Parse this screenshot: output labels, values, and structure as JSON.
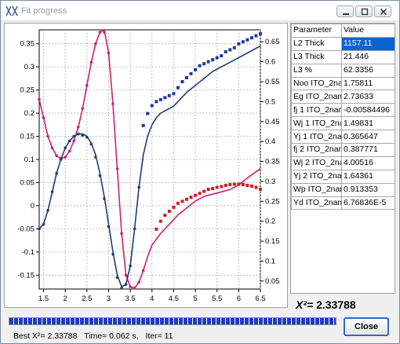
{
  "window": {
    "title": "Fit progress"
  },
  "table": {
    "headers": [
      "Parameter",
      "Value"
    ],
    "rows": [
      [
        "L2 Thick",
        "1157.11"
      ],
      [
        "L3 Thick",
        "21.446"
      ],
      [
        "L3 %",
        "62.3356"
      ],
      [
        "Noo ITO_2nam",
        "1.75811"
      ],
      [
        "Eg ITO_2nam",
        "2.73633"
      ],
      [
        "fj 1 ITO_2nam",
        "-0.00584496"
      ],
      [
        "Wj 1 ITO_2nam",
        "1.49831"
      ],
      [
        "Yj 1 ITO_2nam",
        "0.365647"
      ],
      [
        "fj 2 ITO_2nam",
        "0.387771"
      ],
      [
        "Wj 2 ITO_2nam",
        "4.00516"
      ],
      [
        "Yj 2 ITO_2nam",
        "1.64361"
      ],
      [
        "Wp ITO_2nam",
        "0.913353"
      ],
      [
        "Yd ITO_2nam",
        "6.76836E-5"
      ]
    ],
    "selected_row": 0
  },
  "chi2": {
    "label": "X²=",
    "value": "2.33788"
  },
  "status": {
    "best": "Best X²= 2.33788",
    "time": "Time= 0.062 s,",
    "iter": "Iter= 11"
  },
  "buttons": {
    "close": "Close"
  },
  "progress": {
    "fraction": 1.0
  },
  "chart_data": {
    "type": "line",
    "x_ticks": [
      "1.5",
      "2",
      "2.5",
      "3",
      "3.5",
      "4",
      "4.5",
      "5",
      "5.5",
      "6",
      "6.5"
    ],
    "y_left_ticks": [
      "0.35",
      "0.3",
      "0.25",
      "0.2",
      "0.15",
      "0.1",
      "0.05",
      "0",
      "-0.05",
      "-0.1",
      "-0.15"
    ],
    "y_right_ticks": [
      "0.65",
      "0.6",
      "0.55",
      "0.5",
      "0.45",
      "0.4",
      "0.35",
      "0.3",
      "0.25",
      "0.2",
      "0.15",
      "0.1",
      "0.05"
    ],
    "xlim": [
      1.4,
      6.5
    ],
    "ylim_left": [
      -0.18,
      0.38
    ],
    "ylim_right": [
      0.03,
      0.68
    ],
    "grid": true,
    "series": [
      {
        "color": "#cc2070",
        "axis": "left",
        "fit_x": [
          1.4,
          1.5,
          1.6,
          1.7,
          1.8,
          1.9,
          2.0,
          2.1,
          2.2,
          2.3,
          2.4,
          2.5,
          2.6,
          2.7,
          2.8,
          2.9,
          3.0,
          3.1,
          3.2,
          3.3,
          3.4,
          3.5,
          3.6,
          3.7,
          3.8,
          3.9,
          4.0,
          4.2,
          4.4,
          4.6,
          4.8,
          5.0,
          5.2,
          5.4,
          5.6,
          5.8,
          6.0,
          6.2,
          6.5
        ],
        "fit_y": [
          0.23,
          0.19,
          0.15,
          0.125,
          0.108,
          0.102,
          0.105,
          0.118,
          0.14,
          0.17,
          0.21,
          0.26,
          0.31,
          0.35,
          0.375,
          0.38,
          0.33,
          0.22,
          0.08,
          -0.06,
          -0.15,
          -0.175,
          -0.178,
          -0.165,
          -0.14,
          -0.11,
          -0.085,
          -0.06,
          -0.04,
          -0.02,
          -0.005,
          0.01,
          0.02,
          0.025,
          0.03,
          0.035,
          0.045,
          0.06,
          0.08
        ],
        "data_x": [
          1.4,
          1.5,
          1.6,
          1.7,
          1.8,
          1.9,
          2.0,
          2.1,
          2.2,
          2.3,
          2.4,
          2.5,
          2.6,
          2.7,
          2.8,
          2.9,
          3.0,
          3.1,
          3.2,
          3.3,
          3.4,
          3.5,
          3.6,
          3.7,
          3.8
        ],
        "data_y": [
          0.23,
          0.19,
          0.15,
          0.125,
          0.108,
          0.102,
          0.105,
          0.118,
          0.14,
          0.17,
          0.21,
          0.26,
          0.31,
          0.35,
          0.375,
          0.375,
          0.33,
          0.22,
          0.08,
          -0.06,
          -0.15,
          -0.175,
          -0.178,
          -0.165,
          -0.14
        ]
      },
      {
        "color": "#cc2020",
        "axis": "right",
        "data_x": [
          4.1,
          4.2,
          4.3,
          4.4,
          4.5,
          4.6,
          4.7,
          4.8,
          4.9,
          5.0,
          5.1,
          5.2,
          5.3,
          5.4,
          5.5,
          5.6,
          5.7,
          5.8,
          5.9,
          6.0,
          6.1,
          6.2,
          6.3,
          6.4,
          6.5
        ],
        "data_y": [
          0.18,
          0.2,
          0.215,
          0.225,
          0.235,
          0.245,
          0.25,
          0.255,
          0.26,
          0.265,
          0.27,
          0.275,
          0.28,
          0.282,
          0.285,
          0.287,
          0.29,
          0.292,
          0.293,
          0.293,
          0.292,
          0.29,
          0.288,
          0.285,
          0.28
        ]
      },
      {
        "color": "#1e3a78",
        "axis": "left",
        "fit_x": [
          1.4,
          1.5,
          1.6,
          1.7,
          1.8,
          1.9,
          2.0,
          2.1,
          2.2,
          2.3,
          2.4,
          2.5,
          2.6,
          2.7,
          2.8,
          2.9,
          3.0,
          3.1,
          3.2,
          3.3,
          3.4,
          3.5,
          3.6,
          3.7,
          3.8,
          3.9,
          4.0,
          4.1,
          4.2,
          4.3,
          4.4,
          4.5,
          4.6,
          4.8,
          5.0,
          5.2,
          5.4,
          5.6,
          5.8,
          6.0,
          6.2,
          6.5
        ],
        "fit_y": [
          -0.05,
          -0.04,
          -0.01,
          0.03,
          0.07,
          0.1,
          0.125,
          0.14,
          0.15,
          0.155,
          0.155,
          0.15,
          0.135,
          0.11,
          0.07,
          0.02,
          -0.04,
          -0.1,
          -0.15,
          -0.175,
          -0.17,
          -0.13,
          -0.05,
          0.04,
          0.11,
          0.15,
          0.175,
          0.19,
          0.2,
          0.205,
          0.21,
          0.215,
          0.225,
          0.245,
          0.26,
          0.275,
          0.29,
          0.3,
          0.31,
          0.32,
          0.33,
          0.345
        ],
        "data_x": [
          1.4,
          1.5,
          1.6,
          1.7,
          1.8,
          1.9,
          2.0,
          2.1,
          2.2,
          2.3,
          2.4,
          2.5,
          2.6,
          2.7,
          2.8,
          2.9,
          3.0,
          3.1,
          3.2,
          3.3,
          3.4,
          3.5,
          3.6,
          3.7
        ],
        "data_y": [
          -0.05,
          -0.04,
          -0.01,
          0.03,
          0.07,
          0.1,
          0.125,
          0.14,
          0.15,
          0.155,
          0.152,
          0.148,
          0.133,
          0.105,
          0.065,
          0.015,
          -0.045,
          -0.105,
          -0.155,
          -0.178,
          -0.17,
          -0.13,
          -0.05,
          0.04
        ]
      },
      {
        "color": "#1e3aa0",
        "axis": "right",
        "data_x": [
          3.8,
          3.9,
          4.0,
          4.1,
          4.2,
          4.3,
          4.4,
          4.5,
          4.6,
          4.7,
          4.8,
          4.9,
          5.0,
          5.1,
          5.2,
          5.3,
          5.4,
          5.5,
          5.6,
          5.7,
          5.8,
          5.9,
          6.0,
          6.1,
          6.2,
          6.3,
          6.4,
          6.5
        ],
        "data_y": [
          0.44,
          0.47,
          0.49,
          0.5,
          0.505,
          0.51,
          0.515,
          0.52,
          0.535,
          0.55,
          0.56,
          0.57,
          0.58,
          0.59,
          0.595,
          0.6,
          0.605,
          0.61,
          0.615,
          0.625,
          0.63,
          0.635,
          0.645,
          0.65,
          0.655,
          0.66,
          0.665,
          0.67
        ]
      }
    ]
  }
}
